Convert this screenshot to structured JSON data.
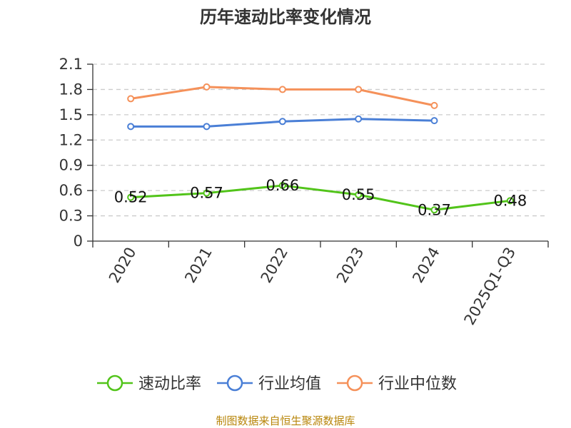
{
  "chart_data": {
    "type": "line",
    "title": "历年速动比率变化情况",
    "categories": [
      "2020",
      "2021",
      "2022",
      "2023",
      "2024",
      "2025Q1-Q3"
    ],
    "y_ticks": [
      "0",
      "0.3",
      "0.6",
      "0.9",
      "1.2",
      "1.5",
      "1.8",
      "2.1"
    ],
    "ylim": [
      0,
      2.1
    ],
    "grid": true,
    "legend_position": "bottom",
    "series": [
      {
        "name": "速动比率",
        "color": "#52c41a",
        "values": [
          0.52,
          0.57,
          0.66,
          0.55,
          0.37,
          0.48
        ],
        "labels": [
          "0.52",
          "0.57",
          "0.66",
          "0.55",
          "0.37",
          "0.48"
        ]
      },
      {
        "name": "行业均值",
        "color": "#4a7fd6",
        "values": [
          1.36,
          1.36,
          1.42,
          1.45,
          1.43,
          null
        ]
      },
      {
        "name": "行业中位数",
        "color": "#f5915a",
        "values": [
          1.69,
          1.83,
          1.8,
          1.8,
          1.61,
          null
        ]
      }
    ],
    "source": "制图数据来自恒生聚源数据库"
  }
}
